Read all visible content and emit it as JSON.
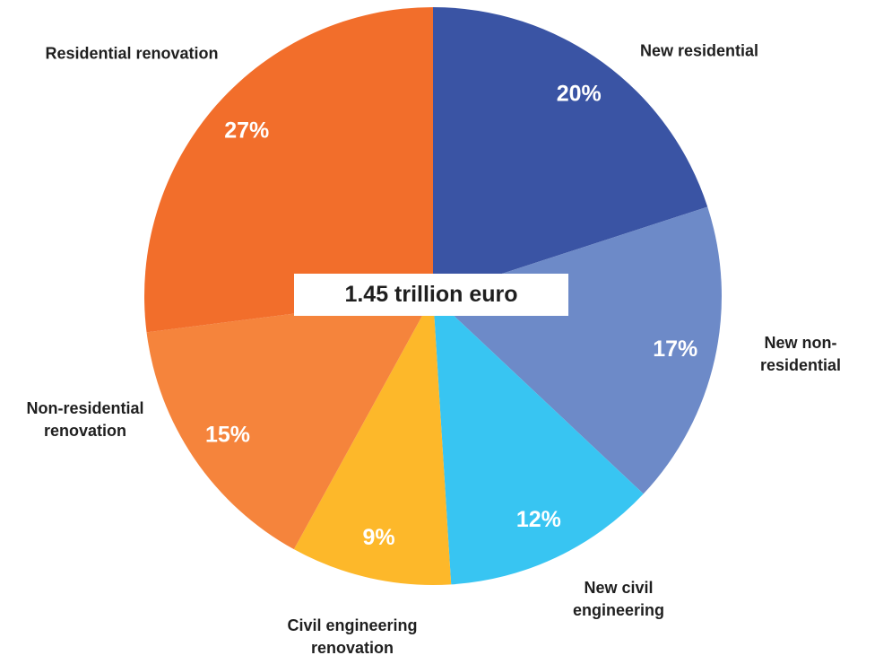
{
  "chart_data": {
    "type": "pie",
    "categories": [
      "New residential",
      "New non-residential",
      "New civil engineering",
      "Civil engineering renovation",
      "Non-residential renovation",
      "Residential renovation"
    ],
    "values": [
      20,
      17,
      12,
      9,
      15,
      27
    ],
    "value_labels": [
      "20%",
      "17%",
      "12%",
      "9%",
      "15%",
      "27%"
    ],
    "colors": [
      "#3a54a4",
      "#6d8ac8",
      "#38c5f2",
      "#fdb82a",
      "#f5843c",
      "#f26e2b"
    ],
    "center_label": "1.45 trillion euro"
  }
}
